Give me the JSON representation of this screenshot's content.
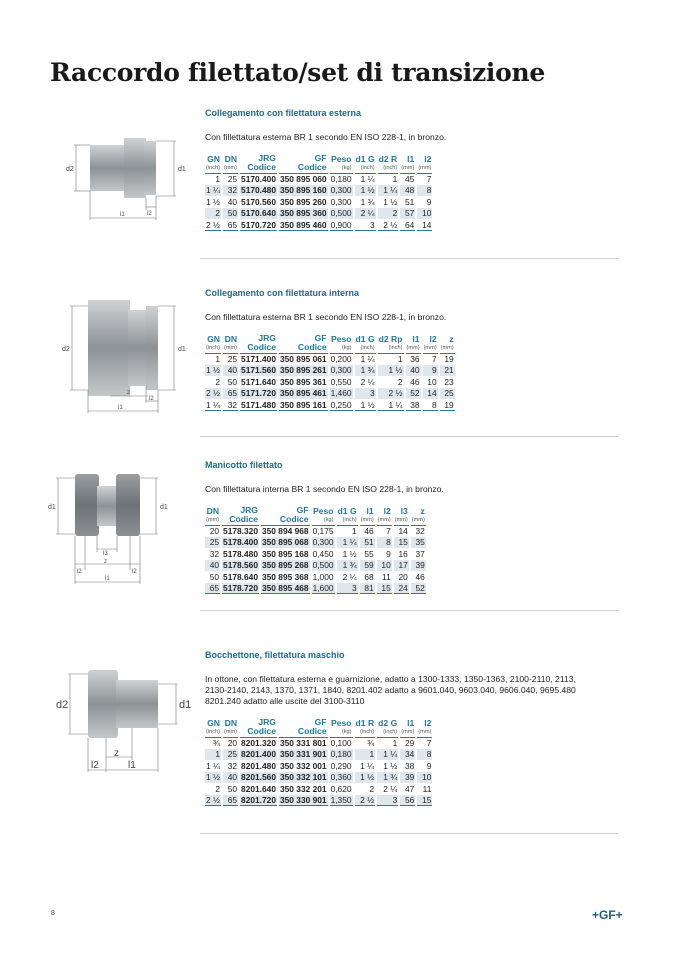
{
  "title": "Raccordo filettato/set di transizione",
  "page_number": "8",
  "logo": "+GF+",
  "colors": {
    "accent": "#1f78a0",
    "row_shade": "#dfe7ed"
  },
  "sections": [
    {
      "title": "Collegamento con filettatura esterna",
      "description": "Con fillettatura esterna BR 1 secondo EN ISO 228-1, in bronzo.",
      "diagram_labels": [
        "d2",
        "d1",
        "l1",
        "l2"
      ],
      "columns": [
        {
          "h": "GN",
          "u": "(inch)"
        },
        {
          "h": "DN",
          "u": "(mm)"
        },
        {
          "h": "JRG",
          "h2": "Codice"
        },
        {
          "h": "GF",
          "h2": "Codice"
        },
        {
          "h": "Peso",
          "u": "(kg)"
        },
        {
          "h": "d1 G",
          "u": "(inch)"
        },
        {
          "h": "d2 R",
          "u": "(inch)"
        },
        {
          "h": "l1",
          "u": "(mm)"
        },
        {
          "h": "l2",
          "u": "(mm)"
        }
      ],
      "rows": [
        [
          "1",
          "25",
          "5170.400",
          "350 895 060",
          "0,180",
          "1 ¼",
          "1",
          "45",
          "7"
        ],
        [
          "1 ¼",
          "32",
          "5170.480",
          "350 895 160",
          "0,300",
          "1 ½",
          "1 ¼",
          "48",
          "8"
        ],
        [
          "1 ½",
          "40",
          "5170.560",
          "350 895 260",
          "0,300",
          "1 ¾",
          "1 ½",
          "51",
          "9"
        ],
        [
          "2",
          "50",
          "5170.640",
          "350 895 360",
          "0,500",
          "2 ¼",
          "2",
          "57",
          "10"
        ],
        [
          "2 ½",
          "65",
          "5170.720",
          "350 895 460",
          "0,900",
          "3",
          "2 ½",
          "64",
          "14"
        ]
      ]
    },
    {
      "title": "Collegamento con filettatura interna",
      "description": "Con fillettatura esterna BR 1 secondo EN ISO 228-1, in bronzo.",
      "diagram_labels": [
        "d2",
        "d1",
        "z",
        "l2",
        "l1"
      ],
      "columns": [
        {
          "h": "GN",
          "u": "(inch)"
        },
        {
          "h": "DN",
          "u": "(mm)"
        },
        {
          "h": "JRG",
          "h2": "Codice"
        },
        {
          "h": "GF",
          "h2": "Codice"
        },
        {
          "h": "Peso",
          "u": "(kg)"
        },
        {
          "h": "d1 G",
          "u": "(inch)"
        },
        {
          "h": "d2 Rp",
          "u": "(inch)"
        },
        {
          "h": "l1",
          "u": "(mm)"
        },
        {
          "h": "l2",
          "u": "(mm)"
        },
        {
          "h": "z",
          "u": "(mm)"
        }
      ],
      "rows": [
        [
          "1",
          "25",
          "5171.400",
          "350 895 061",
          "0,200",
          "1 ¼",
          "1",
          "36",
          "7",
          "19"
        ],
        [
          "1 ½",
          "40",
          "5171.560",
          "350 895 261",
          "0,300",
          "1 ¾",
          "1 ½",
          "40",
          "9",
          "21"
        ],
        [
          "2",
          "50",
          "5171.640",
          "350 895 361",
          "0,550",
          "2 ¼",
          "2",
          "46",
          "10",
          "23"
        ],
        [
          "2 ½",
          "65",
          "5171.720",
          "350 895 461",
          "1,460",
          "3",
          "2 ½",
          "52",
          "14",
          "25"
        ],
        [
          "1 ¼",
          "32",
          "5171.480",
          "350 895 161",
          "0,250",
          "1 ½",
          "1 ¼",
          "38",
          "8",
          "19"
        ]
      ]
    },
    {
      "title": "Manicotto filettato",
      "description": "Con fillettatura interna BR 1 secondo EN ISO 228-1, in bronzo.",
      "diagram_labels": [
        "d1",
        "d1",
        "l3",
        "z",
        "l2",
        "l2",
        "l1"
      ],
      "columns": [
        {
          "h": "DN",
          "u": "(mm)"
        },
        {
          "h": "JRG",
          "h2": "Codice"
        },
        {
          "h": "GF",
          "h2": "Codice"
        },
        {
          "h": "Peso",
          "u": "(kg)"
        },
        {
          "h": "d1 G",
          "u": "(inch)"
        },
        {
          "h": "l1",
          "u": "(mm)"
        },
        {
          "h": "l2",
          "u": "(mm)"
        },
        {
          "h": "l3",
          "u": "(mm)"
        },
        {
          "h": "z",
          "u": "(mm)"
        }
      ],
      "rows": [
        [
          "20",
          "5178.320",
          "350 894 968",
          "0,175",
          "1",
          "46",
          "7",
          "14",
          "32"
        ],
        [
          "25",
          "5178.400",
          "350 895 068",
          "0,300",
          "1 ¼",
          "51",
          "8",
          "15",
          "35"
        ],
        [
          "32",
          "5178.480",
          "350 895 168",
          "0,450",
          "1 ½",
          "55",
          "9",
          "16",
          "37"
        ],
        [
          "40",
          "5178.560",
          "350 895 268",
          "0,500",
          "1 ¾",
          "59",
          "10",
          "17",
          "39"
        ],
        [
          "50",
          "5178.640",
          "350 895 368",
          "1,000",
          "2 ¼",
          "68",
          "11",
          "20",
          "46"
        ],
        [
          "65",
          "5178.720",
          "350 895 468",
          "1,600",
          "3",
          "81",
          "15",
          "24",
          "52"
        ]
      ]
    },
    {
      "title": "Bocchettone, filettatura maschio",
      "description": "In ottone, con filettatura esterna e guarnizione, adatto a 1300-1333, 1350-1363, 2100-2110, 2113,\n2130-2140, 2143, 1370, 1371, 1840, 8201.402 adatto a 9601.040, 9603.040, 9606.040, 9695.480\n8201.240 adatto alle uscite del 3100-3110",
      "diagram_labels": [
        "d2",
        "d1",
        "z",
        "l2",
        "l1"
      ],
      "columns": [
        {
          "h": "GN",
          "u": "(inch)"
        },
        {
          "h": "DN",
          "u": "(mm)"
        },
        {
          "h": "JRG",
          "h2": "Codice"
        },
        {
          "h": "GF",
          "h2": "Codice"
        },
        {
          "h": "Peso",
          "u": "(kg)"
        },
        {
          "h": "d1 R",
          "u": "(inch)"
        },
        {
          "h": "d2 G",
          "u": "(inch)"
        },
        {
          "h": "l1",
          "u": "(mm)"
        },
        {
          "h": "l2",
          "u": "(mm)"
        }
      ],
      "rows": [
        [
          "¾",
          "20",
          "8201.320",
          "350 331 801",
          "0,100",
          "¾",
          "1",
          "29",
          "7"
        ],
        [
          "1",
          "25",
          "8201.400",
          "350 331 901",
          "0,180",
          "1",
          "1 ¼",
          "34",
          "8"
        ],
        [
          "1 ¼",
          "32",
          "8201.480",
          "350 332 001",
          "0,290",
          "1 ¼",
          "1 ½",
          "38",
          "9"
        ],
        [
          "1 ½",
          "40",
          "8201.560",
          "350 332 101",
          "0,360",
          "1 ½",
          "1 ¾",
          "39",
          "10"
        ],
        [
          "2",
          "50",
          "8201.640",
          "350 332 201",
          "0,620",
          "2",
          "2 ¼",
          "47",
          "11"
        ],
        [
          "2 ½",
          "65",
          "8201.720",
          "350 330 901",
          "1,350",
          "2 ½",
          "3",
          "56",
          "15"
        ]
      ]
    }
  ]
}
